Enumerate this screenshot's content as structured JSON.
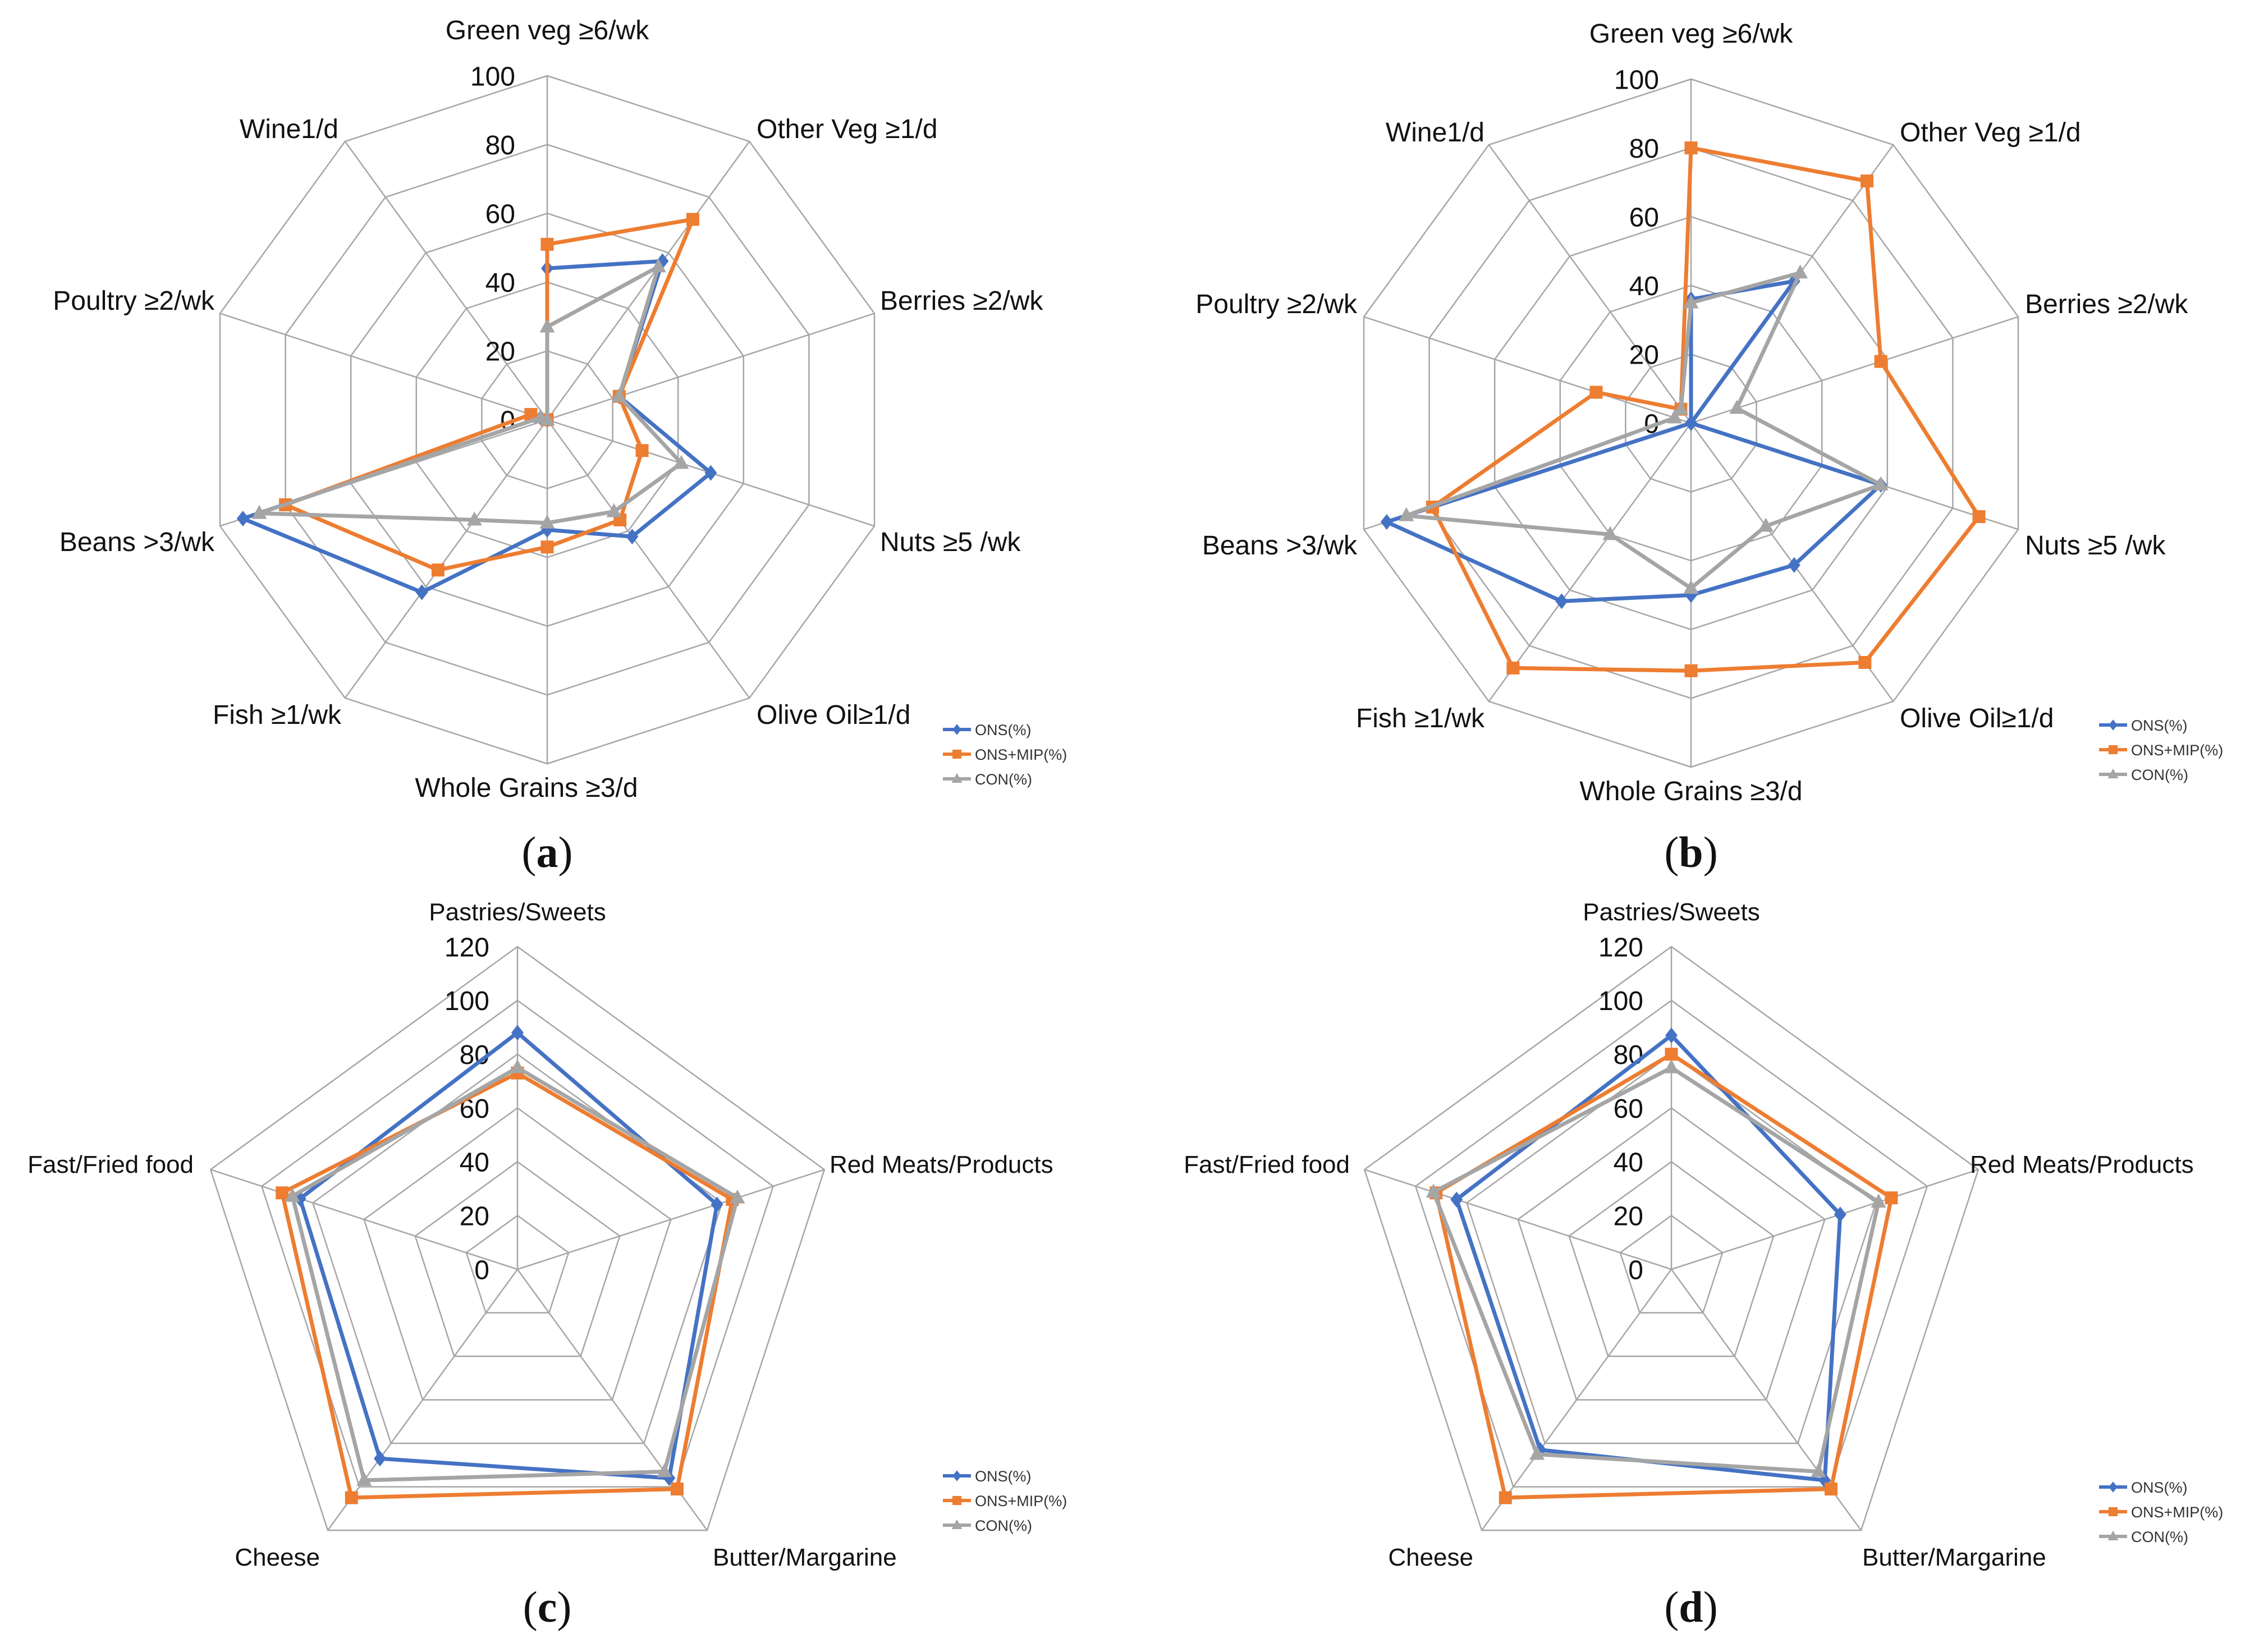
{
  "colors": {
    "ons": "#4472C4",
    "ons_mip": "#ED7D31",
    "con": "#A5A5A5",
    "grid": "#A6A6A6"
  },
  "chart_data": [
    {
      "type": "radar",
      "panel_label": "a",
      "categories": [
        "Green veg ≥6/wk",
        "Other Veg ≥1/d",
        "Berries ≥2/wk",
        "Nuts ≥5 /wk",
        "Olive Oil≥1/d",
        "Whole Grains ≥3/d",
        "Fish ≥1/wk",
        "Beans >3/wk",
        "Poultry ≥2/wk",
        "Wine1/d"
      ],
      "rmax": 100,
      "ticks": [
        0,
        20,
        40,
        60,
        80,
        100
      ],
      "series": [
        {
          "name": "ONS(%)",
          "values": [
            44,
            57,
            22,
            50,
            42,
            32,
            62,
            93,
            2,
            0
          ]
        },
        {
          "name": "ONS+MIP(%)",
          "values": [
            51,
            72,
            22,
            29,
            36,
            37,
            54,
            80,
            5,
            0
          ]
        },
        {
          "name": "CON(%)",
          "values": [
            27,
            55,
            22,
            41,
            33,
            30,
            36,
            88,
            2,
            0
          ]
        }
      ]
    },
    {
      "type": "radar",
      "panel_label": "b",
      "categories": [
        "Green veg ≥6/wk",
        "Other Veg ≥1/d",
        "Berries ≥2/wk",
        "Nuts ≥5 /wk",
        "Olive Oil≥1/d",
        "Whole Grains ≥3/d",
        "Fish ≥1/wk",
        "Beans >3/wk",
        "Poultry ≥2/wk",
        "Wine1/d"
      ],
      "rmax": 100,
      "ticks": [
        0,
        20,
        40,
        60,
        80,
        100
      ],
      "series": [
        {
          "name": "ONS(%)",
          "values": [
            36,
            51,
            0,
            58,
            51,
            50,
            64,
            93,
            0,
            0
          ]
        },
        {
          "name": "ONS+MIP(%)",
          "values": [
            80,
            87,
            58,
            88,
            86,
            72,
            88,
            79,
            29,
            5
          ]
        },
        {
          "name": "CON(%)",
          "values": [
            35,
            54,
            14,
            58,
            37,
            48,
            40,
            87,
            5,
            5
          ]
        }
      ]
    },
    {
      "type": "radar",
      "panel_label": "c",
      "categories": [
        "Pastries/Sweets",
        "Red Meats/Products",
        "Butter/Margarine",
        "Cheese",
        "Fast/Fried food"
      ],
      "rmax": 120,
      "ticks": [
        0,
        20,
        40,
        60,
        80,
        100,
        120
      ],
      "series": [
        {
          "name": "ONS(%)",
          "values": [
            88,
            78,
            96,
            87,
            85
          ]
        },
        {
          "name": "ONS+MIP(%)",
          "values": [
            73,
            84,
            101,
            105,
            92
          ]
        },
        {
          "name": "CON(%)",
          "values": [
            75,
            86,
            93,
            97,
            88
          ]
        }
      ]
    },
    {
      "type": "radar",
      "panel_label": "d",
      "categories": [
        "Pastries/Sweets",
        "Red Meats/Products",
        "Butter/Margarine",
        "Cheese",
        "Fast/Fried food"
      ],
      "rmax": 120,
      "ticks": [
        0,
        20,
        40,
        60,
        80,
        100,
        120
      ],
      "series": [
        {
          "name": "ONS(%)",
          "values": [
            87,
            66,
            97,
            83,
            84
          ]
        },
        {
          "name": "ONS+MIP(%)",
          "values": [
            80,
            86,
            101,
            105,
            92
          ]
        },
        {
          "name": "CON(%)",
          "values": [
            75,
            81,
            93,
            85,
            93
          ]
        }
      ]
    }
  ]
}
